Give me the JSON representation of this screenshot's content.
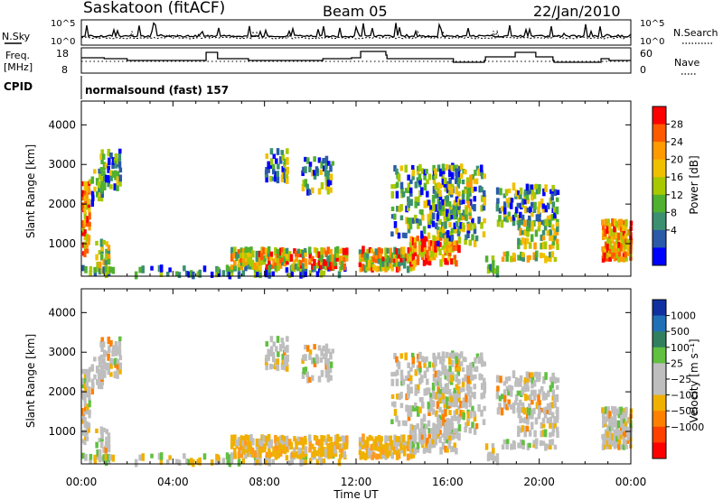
{
  "header": {
    "station": "Saskatoon (fitACF)",
    "beam": "Beam 05",
    "date": "22/Jan/2010",
    "cpid_label": "CPID",
    "cpid_value": "normalsound (fast) 157"
  },
  "sky_panel": {
    "left_label": "N.Sky",
    "right_label": "N.Search",
    "ticks_left": [
      "10^5",
      "10^0"
    ],
    "ticks_right": [
      "10^5",
      "10^0"
    ]
  },
  "freq_panel": {
    "left_label_1": "Freq.",
    "left_label_2": "[MHz]",
    "right_label": "Nave",
    "ticks_left": [
      "18",
      "8"
    ],
    "ticks_right": [
      "60",
      "0"
    ]
  },
  "chart_data": [
    {
      "type": "heatmap",
      "name": "power",
      "ylabel": "Slant Range [km]",
      "yticks": [
        1000,
        2000,
        3000,
        4000
      ],
      "ylim": [
        180,
        4600
      ],
      "xticks": [
        "00:00",
        "04:00",
        "08:00",
        "12:00",
        "16:00",
        "20:00",
        "00:00"
      ],
      "xlim_hours": [
        0,
        24
      ],
      "colorbar": {
        "label": "Power [dB]",
        "ticks": [
          "28",
          "24",
          "20",
          "16",
          "12",
          "8",
          "4"
        ],
        "colors": [
          "#ff0000",
          "#ff5a00",
          "#ff9a00",
          "#f0c000",
          "#a8c800",
          "#50b030",
          "#3a9070",
          "#2a5aa8",
          "#0000ff"
        ]
      }
    },
    {
      "type": "heatmap",
      "name": "velocity",
      "ylabel": "Slant Range [km]",
      "yticks": [
        1000,
        2000,
        3000,
        4000
      ],
      "ylim": [
        180,
        4600
      ],
      "xticks": [
        "00:00",
        "04:00",
        "08:00",
        "12:00",
        "16:00",
        "20:00",
        "00:00"
      ],
      "xlabel": "Time UT",
      "colorbar": {
        "label": "Velocity [m s⁻¹]",
        "ticks": [
          "1000",
          "500",
          "100",
          "25",
          "−25",
          "−100",
          "−500",
          "−1000"
        ],
        "colors": [
          "#1030a0",
          "#2070b8",
          "#308060",
          "#60c040",
          "#bebebe",
          "#bebebe",
          "#f0b000",
          "#ff8000",
          "#ff4000",
          "#ff0000"
        ]
      }
    }
  ]
}
